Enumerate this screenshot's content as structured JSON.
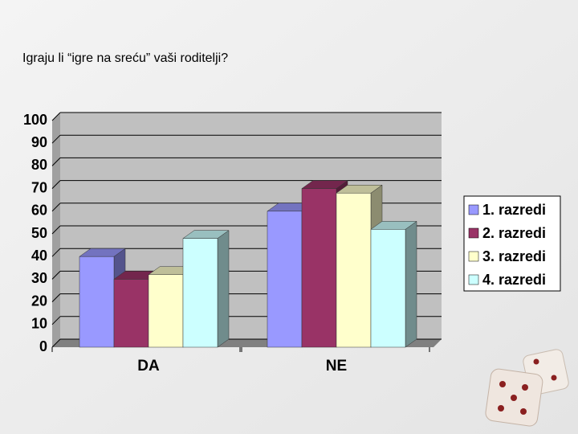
{
  "chart_data": {
    "type": "bar3d",
    "title": "Igraju li “igre na sreću” vaši roditelji?",
    "categories": [
      "DA",
      "NE"
    ],
    "series": [
      {
        "name": "1. razredi",
        "color": "#9999ff",
        "values": [
          40,
          60
        ]
      },
      {
        "name": "2. razredi",
        "color": "#993366",
        "values": [
          30,
          70
        ]
      },
      {
        "name": "3. razredi",
        "color": "#ffffcc",
        "values": [
          32,
          68
        ]
      },
      {
        "name": "4. razredi",
        "color": "#ccffff",
        "values": [
          48,
          52
        ]
      }
    ],
    "ylim": [
      0,
      100
    ],
    "yticks": [
      0,
      10,
      20,
      30,
      40,
      50,
      60,
      70,
      80,
      90,
      100
    ],
    "grid": true,
    "legend": "right"
  }
}
